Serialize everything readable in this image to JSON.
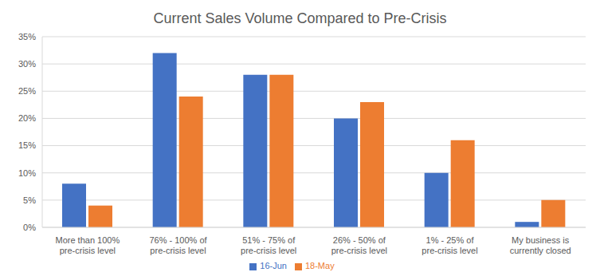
{
  "chart_data": {
    "type": "bar",
    "title": "Current Sales Volume Compared to Pre-Crisis",
    "categories": [
      "More than 100% pre-crisis level",
      "76% - 100% of pre-crisis level",
      "51% - 75% of pre-crisis level",
      "26% - 50% of pre-crisis level",
      "1% - 25% of pre-crisis level",
      "My business is currently closed"
    ],
    "series": [
      {
        "name": "16-Jun",
        "color": "#4472c4",
        "values": [
          8,
          32,
          28,
          20,
          10,
          1
        ]
      },
      {
        "name": "18-May",
        "color": "#ed7d31",
        "values": [
          4,
          24,
          28,
          23,
          16,
          5
        ]
      }
    ],
    "ylim": [
      0,
      35
    ],
    "yticks": [
      {
        "value": 0,
        "label": "0%"
      },
      {
        "value": 5,
        "label": "5%"
      },
      {
        "value": 10,
        "label": "10%"
      },
      {
        "value": 15,
        "label": "15%"
      },
      {
        "value": 20,
        "label": "20%"
      },
      {
        "value": 25,
        "label": "25%"
      },
      {
        "value": 30,
        "label": "30%"
      },
      {
        "value": 35,
        "label": "35%"
      }
    ],
    "grid": true,
    "legend": "bottom"
  }
}
